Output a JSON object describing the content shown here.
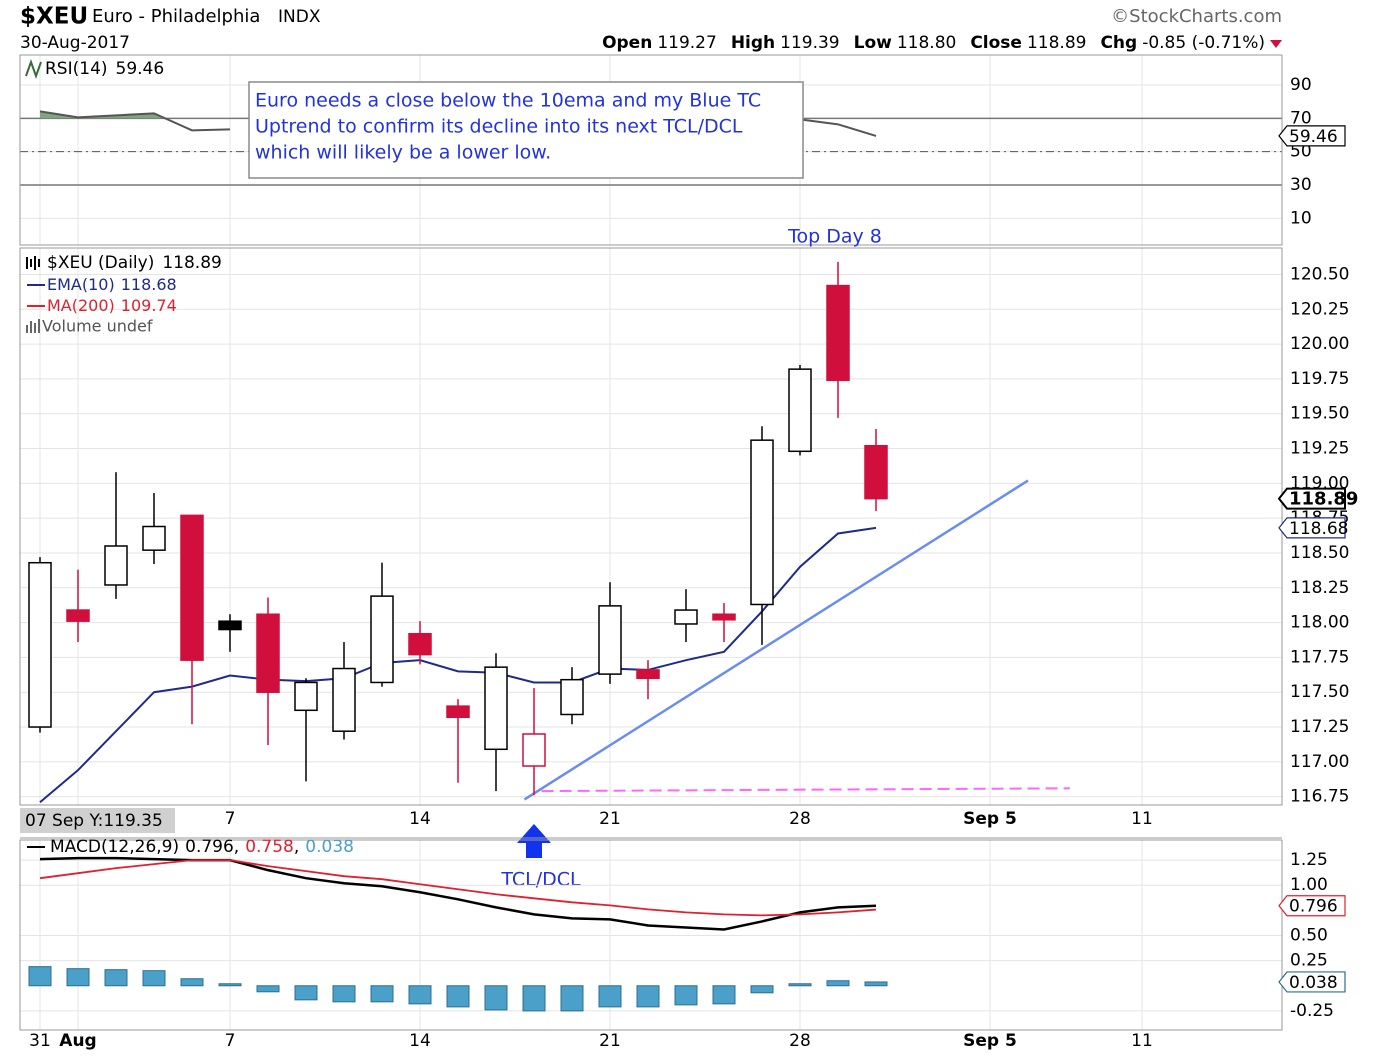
{
  "header": {
    "symbol": "$XEU",
    "name": "Euro - Philadelphia",
    "exchange": "INDX",
    "source": "©StockCharts.com",
    "date": "30-Aug-2017",
    "quote": [
      {
        "label": "Open",
        "value": "119.27"
      },
      {
        "label": "High",
        "value": "119.39"
      },
      {
        "label": "Low",
        "value": "118.80"
      },
      {
        "label": "Close",
        "value": "118.89"
      },
      {
        "label": "Chg",
        "value": "-0.85 (-0.71%)"
      }
    ]
  },
  "chart_data": [
    {
      "type": "line",
      "label": "RSI(14)",
      "ylim": [
        -6,
        108
      ],
      "yticks": [
        90,
        70,
        50,
        30,
        10
      ],
      "grid": true,
      "overbought": 70,
      "centerline": 50,
      "oversold": 30,
      "fill_color": "#7fa67f",
      "series": [
        {
          "name": "RSI(14)",
          "color": "#555555",
          "values": [
            74.2,
            70.6,
            71.8,
            73.0,
            62.8,
            63.4,
            null,
            null,
            null,
            null,
            null,
            null,
            null,
            null,
            null,
            null,
            null,
            null,
            null,
            null,
            69.4,
            66.4,
            59.46,
            null,
            null,
            null,
            null,
            null,
            null,
            null,
            null,
            null,
            null
          ]
        }
      ],
      "annotation": [
        "Euro needs a close below the 10ema and my Blue TC",
        "Uptrend to confirm its decline into its next TCL/DCL",
        "which will likely be a lower low."
      ]
    },
    {
      "type": "candlestick",
      "label": "$XEU (Daily)",
      "categories": [
        "31",
        "Aug",
        null,
        null,
        null,
        "7",
        null,
        null,
        null,
        null,
        "14",
        null,
        null,
        null,
        null,
        "21",
        null,
        null,
        null,
        null,
        "28",
        null,
        null,
        null,
        null,
        "Sep 5",
        null,
        null,
        null,
        "11",
        null,
        null,
        null
      ],
      "open": [
        117.25,
        118.09,
        118.27,
        118.52,
        118.77,
        118.01,
        118.06,
        117.37,
        117.22,
        117.57,
        117.92,
        117.4,
        117.09,
        116.97,
        117.34,
        117.63,
        117.66,
        117.99,
        118.06,
        118.13,
        119.23,
        120.42,
        119.27,
        null,
        null,
        null,
        null,
        null,
        null,
        null,
        null,
        null,
        null
      ],
      "high": [
        118.47,
        118.38,
        119.08,
        118.93,
        118.77,
        118.06,
        118.18,
        117.6,
        117.86,
        118.43,
        118.01,
        117.45,
        117.78,
        117.53,
        117.68,
        118.29,
        117.73,
        118.24,
        118.14,
        119.41,
        119.85,
        120.59,
        119.39,
        null,
        null,
        null,
        null,
        null,
        null,
        null,
        null,
        null,
        null
      ],
      "low": [
        117.21,
        117.86,
        118.17,
        118.42,
        117.27,
        117.79,
        117.12,
        116.86,
        117.16,
        117.54,
        117.7,
        116.85,
        116.79,
        116.76,
        117.27,
        117.56,
        117.45,
        117.86,
        117.86,
        117.84,
        119.2,
        119.47,
        118.8,
        null,
        null,
        null,
        null,
        null,
        null,
        null,
        null,
        null,
        null
      ],
      "close": [
        118.43,
        118.01,
        118.55,
        118.69,
        117.73,
        117.95,
        117.5,
        117.57,
        117.67,
        118.19,
        117.77,
        117.32,
        117.68,
        117.2,
        117.59,
        118.12,
        117.6,
        118.09,
        118.02,
        119.31,
        119.82,
        119.74,
        118.89,
        null,
        null,
        null,
        null,
        null,
        null,
        null,
        null,
        null,
        null
      ],
      "up_color": "#000000",
      "down_color": "#d10f3d",
      "ylim": [
        116.69,
        120.69
      ],
      "yticks": [
        {
          "value": 120.5,
          "label": "120.50"
        },
        120.25,
        {
          "value": 120,
          "label": "120.00"
        },
        119.75,
        {
          "value": 119.5,
          "label": "119.50"
        },
        119.25,
        {
          "value": 119,
          "label": "119.00"
        },
        118.75,
        {
          "value": 118.5,
          "label": "118.50"
        },
        118.25,
        {
          "value": 118,
          "label": "118.00"
        },
        117.75,
        {
          "value": 117.5,
          "label": "117.50"
        },
        117.25,
        {
          "value": 117,
          "label": "117.00"
        },
        116.75
      ],
      "grid": true,
      "series": [
        {
          "name": "EMA(10)",
          "color": "#1f2a8a",
          "values": [
            116.71,
            116.94,
            117.22,
            117.5,
            117.54,
            117.62,
            117.59,
            117.58,
            117.6,
            117.71,
            117.73,
            117.65,
            117.64,
            117.57,
            117.57,
            117.67,
            117.66,
            117.73,
            117.79,
            118.08,
            118.4,
            118.64,
            118.68,
            null,
            null,
            null,
            null,
            null,
            null,
            null,
            null,
            null,
            null
          ]
        }
      ],
      "ma200": {
        "name": "MA(200)",
        "value": 109.74,
        "color": "#e0202f"
      },
      "volume_label": "Volume undef",
      "trendline": {
        "x": [
          12.75,
          26
        ],
        "values": [
          116.73,
          119.02
        ],
        "color": "#6b8cf0"
      },
      "support": {
        "x": [
          13.2,
          27.1
        ],
        "values": [
          116.79,
          116.81
        ],
        "color": "#ff66ff"
      },
      "top_label": "Top Day 8",
      "bottom_label": "TCL/DCL",
      "cursor_label": "07 Sep Y:119.35"
    },
    {
      "type": "line",
      "label": "MACD(12,26,9)",
      "legend_separator": ",",
      "ylim": [
        -0.44,
        1.45
      ],
      "yticks": [
        1.25,
        {
          "value": 1,
          "label": "1.00"
        },
        {
          "value": 0.5,
          "label": "0.50"
        },
        0.25,
        -0.25
      ],
      "grid": true,
      "series": [
        {
          "name": "MACD",
          "color": "#000000",
          "values": [
            1.26,
            1.27,
            1.27,
            1.26,
            1.25,
            1.25,
            1.15,
            1.07,
            1.02,
            0.99,
            0.93,
            0.86,
            0.78,
            0.71,
            0.67,
            0.66,
            0.6,
            0.58,
            0.56,
            0.64,
            0.73,
            0.78,
            0.796,
            null,
            null,
            null,
            null,
            null,
            null,
            null,
            null,
            null,
            null
          ]
        },
        {
          "name": "Signal",
          "color": "#e0202f",
          "values": [
            1.07,
            1.12,
            1.17,
            1.21,
            1.25,
            1.25,
            1.19,
            1.14,
            1.09,
            1.06,
            1.01,
            0.96,
            0.91,
            0.87,
            0.83,
            0.8,
            0.76,
            0.73,
            0.71,
            0.7,
            0.71,
            0.73,
            0.758,
            null,
            null,
            null,
            null,
            null,
            null,
            null,
            null,
            null,
            null
          ]
        },
        {
          "name": "Histogram",
          "type": "bar",
          "color": "#4aa0c8",
          "values": [
            0.19,
            0.17,
            0.16,
            0.15,
            0.07,
            0.02,
            -0.06,
            -0.14,
            -0.16,
            -0.16,
            -0.18,
            -0.21,
            -0.24,
            -0.25,
            -0.25,
            -0.21,
            -0.21,
            -0.19,
            -0.18,
            -0.07,
            0.02,
            0.05,
            0.038,
            null,
            null,
            null,
            null,
            null,
            null,
            null,
            null,
            null,
            null
          ]
        }
      ]
    }
  ]
}
